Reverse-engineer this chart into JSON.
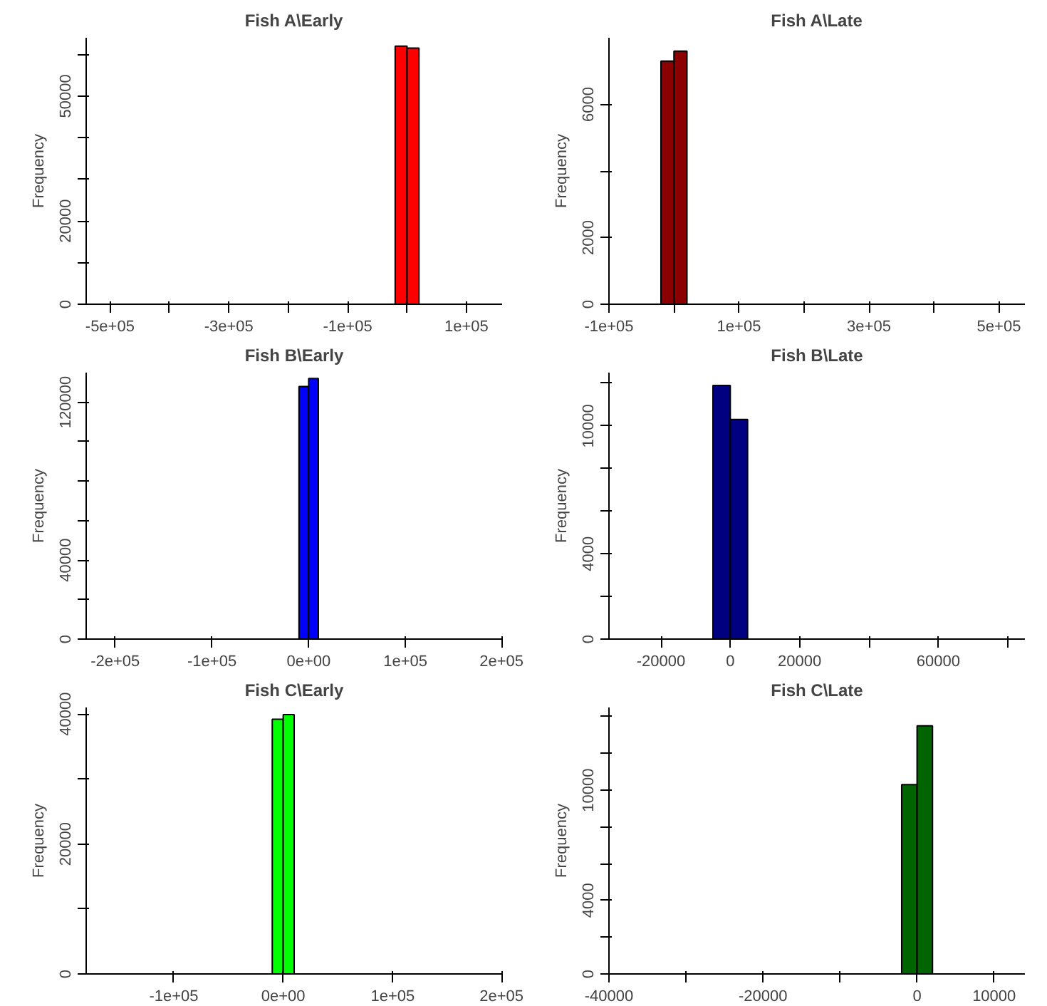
{
  "chart_data": [
    {
      "type": "histogram",
      "title": "Fish A\\Early",
      "ylabel": "Frequency",
      "color": "#ff0000",
      "bins": [
        -540000,
        -520000,
        -500000,
        -480000,
        -460000,
        -440000,
        -420000,
        -400000,
        -380000,
        -360000,
        -340000,
        -320000,
        -300000,
        -280000,
        -260000,
        -240000,
        -220000,
        -200000,
        -180000,
        -160000,
        -140000,
        -120000,
        -100000,
        -80000,
        -60000,
        -40000,
        -20000,
        0,
        20000,
        40000,
        60000,
        80000,
        100000,
        120000,
        140000,
        160000
      ],
      "values": [
        0,
        0,
        0,
        0,
        0,
        0,
        0,
        0,
        0,
        0,
        0,
        0,
        0,
        0,
        0,
        0,
        0,
        0,
        0,
        0,
        0,
        0,
        0,
        0,
        0,
        0,
        62000,
        61500,
        0,
        0,
        0,
        0,
        0,
        0,
        0
      ],
      "xlim": [
        -540000,
        160000
      ],
      "ylim": [
        0,
        64000
      ],
      "xticks": [
        {
          "value": -500000,
          "label": "-5e+05"
        },
        {
          "value": -400000,
          "label": null
        },
        {
          "value": -300000,
          "label": "-3e+05"
        },
        {
          "value": -200000,
          "label": null
        },
        {
          "value": -100000,
          "label": "-1e+05"
        },
        {
          "value": 0,
          "label": null
        },
        {
          "value": 100000,
          "label": "1e+05"
        }
      ],
      "yticks": [
        0,
        {
          "value": 10000,
          "label": null
        },
        20000,
        {
          "value": 30000,
          "label": null
        },
        {
          "value": 40000,
          "label": null
        },
        50000,
        {
          "value": 60000,
          "label": null
        }
      ]
    },
    {
      "type": "histogram",
      "title": "Fish A\\Late",
      "ylabel": "Frequency",
      "color": "#8b0000",
      "bins": [
        -100000,
        -80000,
        -60000,
        -40000,
        -20000,
        0,
        20000,
        40000,
        60000,
        80000,
        100000,
        120000,
        140000,
        160000,
        180000,
        200000,
        220000,
        240000,
        260000,
        280000,
        300000,
        320000,
        340000,
        360000,
        380000,
        400000,
        420000,
        440000,
        460000,
        480000,
        500000,
        520000,
        540000
      ],
      "values": [
        0,
        0,
        0,
        0,
        7300,
        7600,
        0,
        0,
        0,
        0,
        0,
        0,
        0,
        0,
        0,
        0,
        0,
        0,
        0,
        0,
        0,
        0,
        0,
        0,
        0,
        0,
        0,
        0,
        0,
        0,
        0,
        0
      ],
      "xlim": [
        -100000,
        540000
      ],
      "ylim": [
        0,
        8000
      ],
      "xticks": [
        {
          "value": -100000,
          "label": "-1e+05"
        },
        {
          "value": 0,
          "label": null
        },
        {
          "value": 100000,
          "label": "1e+05"
        },
        {
          "value": 200000,
          "label": null
        },
        {
          "value": 300000,
          "label": "3e+05"
        },
        {
          "value": 400000,
          "label": null
        },
        {
          "value": 500000,
          "label": "5e+05"
        }
      ],
      "yticks": [
        0,
        2000,
        {
          "value": 4000,
          "label": null
        },
        6000
      ]
    },
    {
      "type": "histogram",
      "title": "Fish B\\Early",
      "ylabel": "Frequency",
      "color": "#0000ff",
      "bins": [
        -230000,
        -220000,
        -210000,
        -200000,
        -190000,
        -180000,
        -170000,
        -160000,
        -150000,
        -140000,
        -130000,
        -120000,
        -110000,
        -100000,
        -90000,
        -80000,
        -70000,
        -60000,
        -50000,
        -40000,
        -30000,
        -20000,
        -10000,
        0,
        10000,
        20000,
        30000,
        40000,
        50000,
        60000,
        70000,
        80000,
        90000,
        100000,
        110000,
        120000,
        130000,
        140000,
        150000,
        160000,
        170000,
        180000,
        190000
      ],
      "values": [
        0,
        0,
        0,
        0,
        0,
        0,
        0,
        0,
        0,
        0,
        0,
        0,
        0,
        0,
        0,
        0,
        0,
        0,
        0,
        0,
        0,
        0,
        128000,
        132000,
        0,
        0,
        0,
        0,
        0,
        0,
        0,
        0,
        0,
        0,
        0,
        0,
        0,
        0,
        0,
        0,
        0,
        0
      ],
      "xlim": [
        -230000,
        200000
      ],
      "ylim": [
        0,
        135000
      ],
      "xticks": [
        {
          "value": -200000,
          "label": "-2e+05"
        },
        {
          "value": -100000,
          "label": "-1e+05"
        },
        {
          "value": 0,
          "label": "0e+00"
        },
        {
          "value": 100000,
          "label": "1e+05"
        },
        {
          "value": 200000,
          "label": "2e+05"
        }
      ],
      "yticks": [
        0,
        {
          "value": 20000,
          "label": null
        },
        40000,
        {
          "value": 60000,
          "label": null
        },
        {
          "value": 80000,
          "label": null
        },
        {
          "value": 100000,
          "label": null
        },
        120000
      ]
    },
    {
      "type": "histogram",
      "title": "Fish B\\Late",
      "ylabel": "Frequency",
      "color": "#000080",
      "bins": [
        -35000,
        -30000,
        -25000,
        -20000,
        -15000,
        -10000,
        -5000,
        0,
        5000,
        10000,
        15000,
        20000,
        25000,
        30000,
        35000,
        40000,
        45000,
        50000,
        55000,
        60000,
        65000,
        70000,
        75000,
        80000,
        85000
      ],
      "values": [
        0,
        0,
        0,
        0,
        0,
        0,
        11900,
        10300,
        0,
        0,
        0,
        0,
        0,
        0,
        0,
        0,
        0,
        0,
        0,
        0,
        0,
        0,
        0,
        0
      ],
      "xlim": [
        -35000,
        85000
      ],
      "ylim": [
        0,
        12500
      ],
      "xticks": [
        -20000,
        0,
        20000,
        {
          "value": 40000,
          "label": null
        },
        60000,
        {
          "value": 80000,
          "label": null
        }
      ],
      "yticks": [
        0,
        {
          "value": 2000,
          "label": null
        },
        4000,
        {
          "value": 6000,
          "label": null
        },
        {
          "value": 8000,
          "label": null
        },
        10000,
        {
          "value": 12000,
          "label": null
        }
      ]
    },
    {
      "type": "histogram",
      "title": "Fish C\\Early",
      "ylabel": "Frequency",
      "color": "#00ff00",
      "bins": [
        -180000,
        -170000,
        -160000,
        -150000,
        -140000,
        -130000,
        -120000,
        -110000,
        -100000,
        -90000,
        -80000,
        -70000,
        -60000,
        -50000,
        -40000,
        -30000,
        -20000,
        -10000,
        0,
        10000,
        20000,
        30000,
        40000,
        50000,
        60000,
        70000,
        80000,
        90000,
        100000,
        110000,
        120000,
        130000,
        140000,
        150000,
        160000,
        170000,
        180000,
        190000
      ],
      "values": [
        0,
        0,
        0,
        0,
        0,
        0,
        0,
        0,
        0,
        0,
        0,
        0,
        0,
        0,
        0,
        0,
        0,
        39200,
        39900,
        0,
        0,
        0,
        0,
        0,
        0,
        0,
        0,
        0,
        0,
        0,
        0,
        0,
        0,
        0,
        0,
        0,
        0
      ],
      "xlim": [
        -180000,
        200000
      ],
      "ylim": [
        0,
        41000
      ],
      "xticks": [
        {
          "value": -100000,
          "label": "-1e+05"
        },
        {
          "value": 0,
          "label": "0e+00"
        },
        {
          "value": 100000,
          "label": "1e+05"
        },
        {
          "value": 200000,
          "label": "2e+05"
        }
      ],
      "yticks": [
        0,
        {
          "value": 10000,
          "label": null
        },
        20000,
        {
          "value": 30000,
          "label": null
        },
        40000
      ]
    },
    {
      "type": "histogram",
      "title": "Fish C\\Late",
      "ylabel": "Frequency",
      "color": "#006400",
      "bins": [
        -40000,
        -38000,
        -36000,
        -34000,
        -32000,
        -30000,
        -28000,
        -26000,
        -24000,
        -22000,
        -20000,
        -18000,
        -16000,
        -14000,
        -12000,
        -10000,
        -8000,
        -6000,
        -4000,
        -2000,
        0,
        2000,
        4000,
        6000,
        8000,
        10000,
        12000,
        14000
      ],
      "values": [
        0,
        0,
        0,
        0,
        0,
        0,
        0,
        0,
        0,
        0,
        0,
        0,
        0,
        0,
        0,
        0,
        0,
        0,
        0,
        10300,
        13500,
        0,
        0,
        0,
        0,
        0,
        0
      ],
      "xlim": [
        -40000,
        14000
      ],
      "ylim": [
        0,
        14500
      ],
      "xticks": [
        -40000,
        {
          "value": -30000,
          "label": null
        },
        -20000,
        {
          "value": -10000,
          "label": null
        },
        0,
        10000
      ],
      "yticks": [
        0,
        {
          "value": 2000,
          "label": null
        },
        4000,
        {
          "value": 6000,
          "label": null
        },
        {
          "value": 8000,
          "label": null
        },
        10000,
        {
          "value": 12000,
          "label": null
        },
        {
          "value": 14000,
          "label": null
        }
      ]
    }
  ]
}
